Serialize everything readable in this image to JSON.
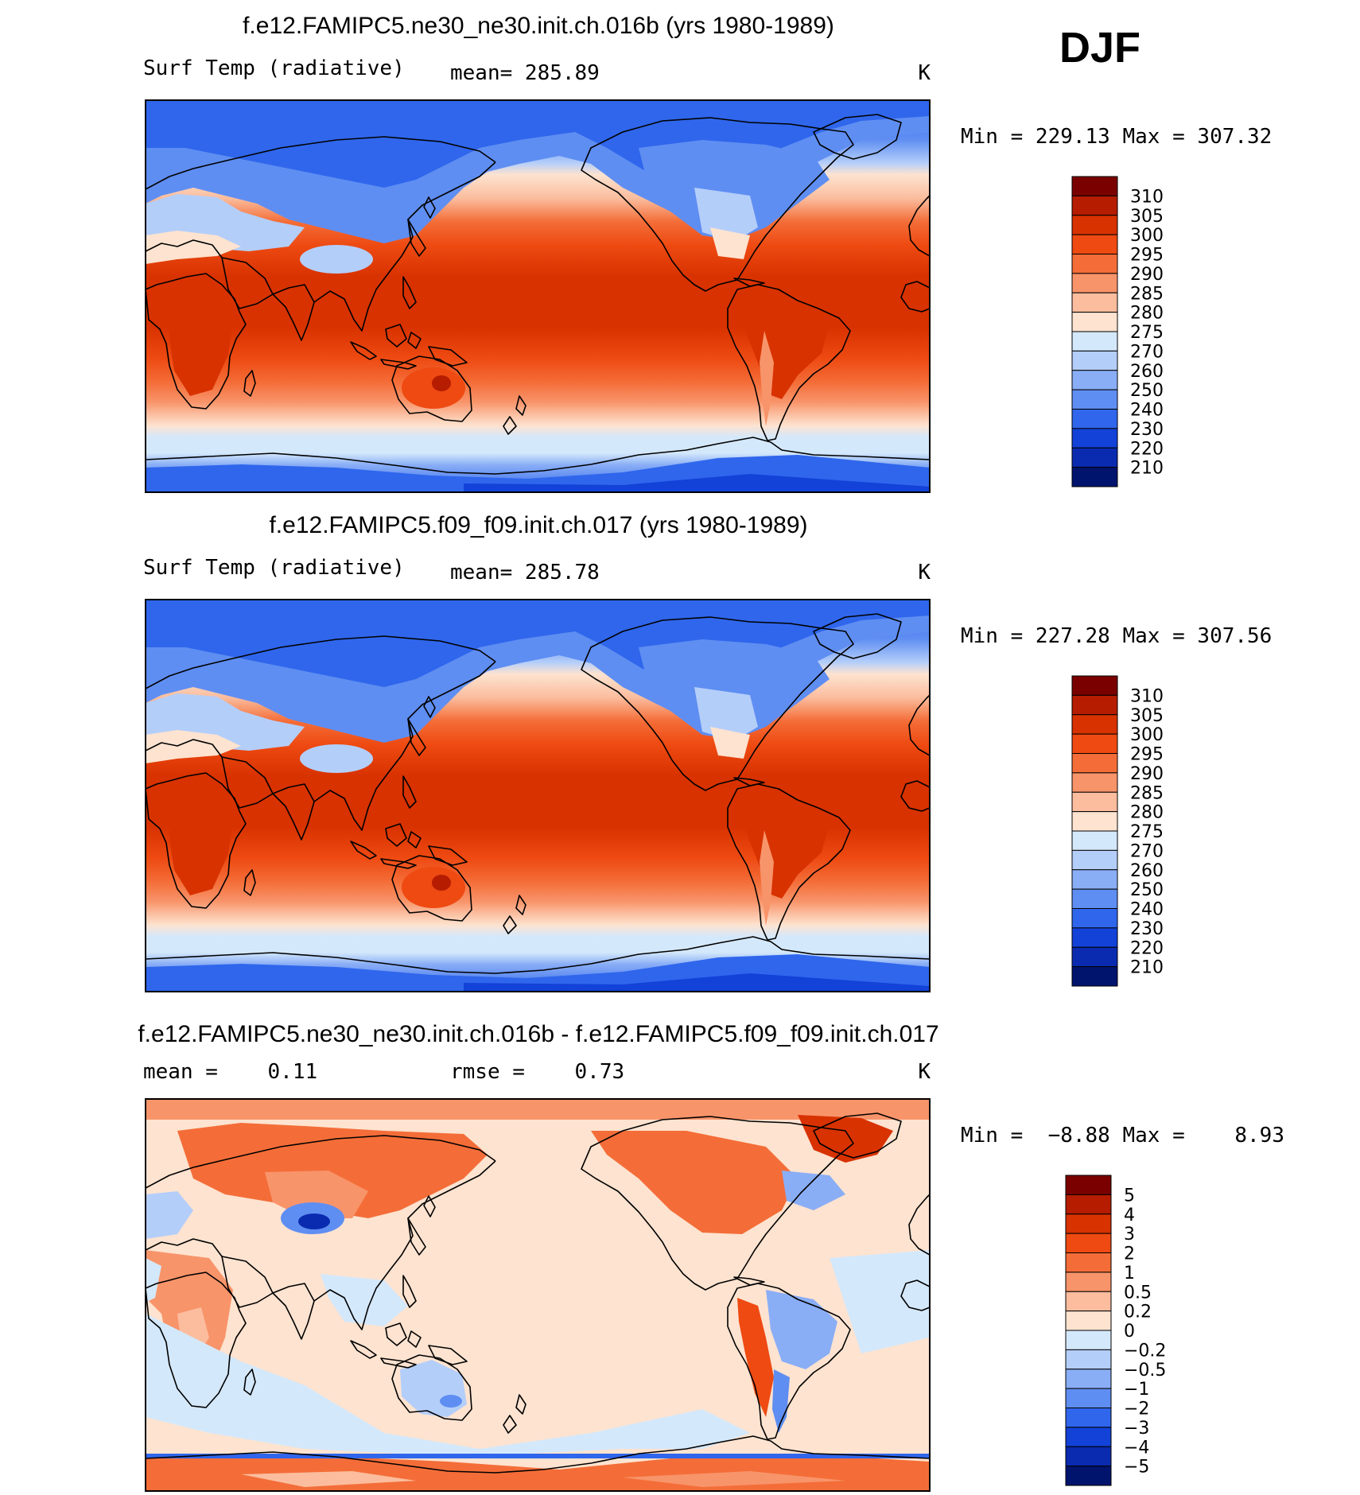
{
  "season": "DJF",
  "panels": [
    {
      "id": "panel-1",
      "title": "f.e12.FAMIPC5.ne30_ne30.init.ch.016b (yrs 1980-1989)",
      "left_label": "Surf Temp (radiative)",
      "center_label": "mean= 285.89",
      "unit": "K",
      "minmax": "Min = 229.13 Max = 307.32",
      "colorbar": {
        "levels": [
          "310",
          "305",
          "300",
          "295",
          "290",
          "285",
          "280",
          "275",
          "270",
          "260",
          "250",
          "240",
          "230",
          "220",
          "210"
        ],
        "colors": [
          "#7a0000",
          "#b51c00",
          "#d83200",
          "#ee4a12",
          "#f46d38",
          "#f8946a",
          "#fbbd9e",
          "#fde3d0",
          "#d4e8fb",
          "#b4cefa",
          "#8aaef6",
          "#5f8ef2",
          "#2f66ec",
          "#1242d8",
          "#0a2bb0",
          "#00146e"
        ]
      }
    },
    {
      "id": "panel-2",
      "title": "f.e12.FAMIPC5.f09_f09.init.ch.017 (yrs 1980-1989)",
      "left_label": "Surf Temp (radiative)",
      "center_label": "mean= 285.78",
      "unit": "K",
      "minmax": "Min = 227.28 Max = 307.56",
      "colorbar": {
        "levels": [
          "310",
          "305",
          "300",
          "295",
          "290",
          "285",
          "280",
          "275",
          "270",
          "260",
          "250",
          "240",
          "230",
          "220",
          "210"
        ],
        "colors": [
          "#7a0000",
          "#b51c00",
          "#d83200",
          "#ee4a12",
          "#f46d38",
          "#f8946a",
          "#fbbd9e",
          "#fde3d0",
          "#d4e8fb",
          "#b4cefa",
          "#8aaef6",
          "#5f8ef2",
          "#2f66ec",
          "#1242d8",
          "#0a2bb0",
          "#00146e"
        ]
      }
    },
    {
      "id": "panel-3",
      "title": "f.e12.FAMIPC5.ne30_ne30.init.ch.016b - f.e12.FAMIPC5.f09_f09.init.ch.017",
      "left_label": "mean =    0.11",
      "center_label": "rmse =    0.73",
      "unit": "K",
      "minmax": "Min =  −8.88 Max =    8.93",
      "colorbar": {
        "levels": [
          "5",
          "4",
          "3",
          "2",
          "1",
          "0.5",
          "0.2",
          "0",
          "−0.2",
          "−0.5",
          "−1",
          "−2",
          "−3",
          "−4",
          "−5"
        ],
        "colors": [
          "#7a0000",
          "#b51c00",
          "#d83200",
          "#ee4a12",
          "#f46d38",
          "#f8946a",
          "#fbbd9e",
          "#fde3d0",
          "#d4e8fb",
          "#b4cefa",
          "#8aaef6",
          "#5f8ef2",
          "#2f66ec",
          "#1242d8",
          "#0a2bb0",
          "#00146e"
        ]
      }
    }
  ]
}
